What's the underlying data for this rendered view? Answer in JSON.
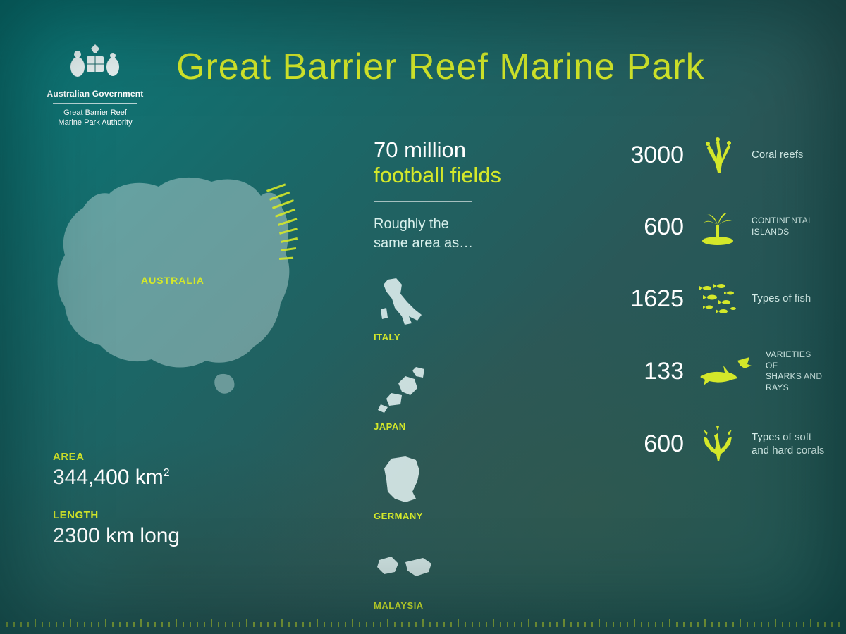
{
  "colors": {
    "accent": "#d4e82a",
    "text_light": "#ffffff",
    "text_soft": "#d8f0ec",
    "map_fill": "rgba(200,225,225,0.45)",
    "country_fill": "rgba(230,245,245,0.92)",
    "bg_gradient": [
      "#0a7a7a",
      "#1a6868",
      "#2a5858",
      "#1a5555"
    ]
  },
  "typography": {
    "title_fontsize": 52,
    "title_weight": 200,
    "stat_num_fontsize": 34,
    "metric_value_fontsize": 30,
    "body_font": "Helvetica Neue"
  },
  "logo": {
    "org_line1": "Australian Government",
    "org_line2": "Great Barrier Reef\nMarine Park Authority"
  },
  "title": "Great Barrier Reef Marine Park",
  "map": {
    "label": "AUSTRALIA"
  },
  "metrics": {
    "area_label": "AREA",
    "area_value": "344,400 km",
    "area_exponent": "2",
    "length_label": "LENGTH",
    "length_value": "2300 km long"
  },
  "middle": {
    "headline_top": "70 million",
    "headline_bottom": "football fields",
    "subtext": "Roughly the\nsame area as…",
    "countries": [
      {
        "name": "ITALY"
      },
      {
        "name": "JAPAN"
      },
      {
        "name": "GERMANY"
      },
      {
        "name": "MALAYSIA"
      }
    ]
  },
  "stats": [
    {
      "value": "3000",
      "label": "Coral reefs",
      "icon": "coral-icon"
    },
    {
      "value": "600",
      "label": "CONTINENTAL ISLANDS",
      "icon": "island-icon",
      "upper": true
    },
    {
      "value": "1625",
      "label": "Types of fish",
      "icon": "fish-school-icon"
    },
    {
      "value": "133",
      "label": "VARIETIES OF\nSHARKS AND RAYS",
      "icon": "shark-icon",
      "upper": true
    },
    {
      "value": "600",
      "label": "Types of soft\nand hard corals",
      "icon": "coral2-icon"
    }
  ]
}
